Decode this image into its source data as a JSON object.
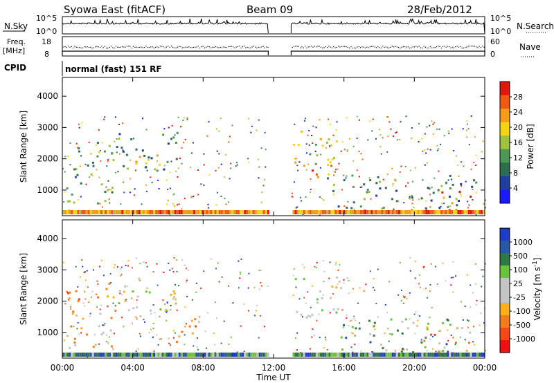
{
  "header": {
    "station": "Syowa East (fitACF)",
    "beam": "Beam 09",
    "date": "28/Feb/2012"
  },
  "top_panels": {
    "nsky_label": "N.Sky",
    "nsearch_label": "N.Search",
    "nsky_ticks": [
      "10^5",
      "10^0"
    ],
    "nsearch_ticks": [
      "10^5",
      "10^0"
    ],
    "freq_label": "Freq.",
    "freq_unit": "[MHz]",
    "freq_ticks": [
      "18",
      "8"
    ],
    "nave_label": "Nave",
    "nave_ticks": [
      "60",
      "0"
    ],
    "cpid_label": "CPID",
    "cpid_text": "normal (fast) 151 RF"
  },
  "colors": {
    "power_scale": [
      "#1a1aff",
      "#1e3fa0",
      "#2e6e50",
      "#4a9a55",
      "#9ec23c",
      "#f5d21a",
      "#f59a1a",
      "#ee5a14",
      "#dd1a0e"
    ],
    "velocity_scale": [
      "#ee1111",
      "#f24a16",
      "#f57c1a",
      "#f8b01e",
      "#c4c4c4",
      "#c4c4c4",
      "#6cc23c",
      "#2e7a46",
      "#2a56a8",
      "#1f3cc8"
    ]
  },
  "chart_data": [
    {
      "type": "heatmap",
      "name": "power",
      "xlabel": "Time UT",
      "ylabel": "Slant Range [km]",
      "x_ticks": [
        "00:00",
        "04:00",
        "08:00",
        "12:00",
        "16:00",
        "20:00",
        "00:00"
      ],
      "xlim_hours": [
        0,
        24
      ],
      "ylim": [
        180,
        4600
      ],
      "y_ticks": [
        1000,
        2000,
        3000,
        4000
      ],
      "colorbar_label": "Power [dB]",
      "colorbar_ticks": [
        4,
        8,
        12,
        16,
        20,
        24,
        28
      ],
      "colorbar_range": [
        0,
        30
      ],
      "data_gap_hours": [
        11.7,
        13.0
      ],
      "echo_regions": [
        {
          "t": [
            0.2,
            3.0
          ],
          "r": [
            600,
            2600
          ],
          "power_db": 12
        },
        {
          "t": [
            3.0,
            6.5
          ],
          "r": [
            1500,
            2900
          ],
          "power_db": 10
        },
        {
          "t": [
            4.0,
            6.0
          ],
          "r": [
            1800,
            2500
          ],
          "power_db": 16
        },
        {
          "t": [
            6.8,
            7.5
          ],
          "r": [
            700,
            1000
          ],
          "power_db": 24
        },
        {
          "t": [
            13.0,
            15.8
          ],
          "r": [
            1500,
            2900
          ],
          "power_db": 16
        },
        {
          "t": [
            14.0,
            15.5
          ],
          "r": [
            1400,
            1900
          ],
          "power_db": 22
        },
        {
          "t": [
            15.0,
            23.5
          ],
          "r": [
            300,
            1500
          ],
          "power_db": 10
        },
        {
          "t": [
            21.5,
            23.2
          ],
          "r": [
            300,
            1000
          ],
          "power_db": 24
        }
      ]
    },
    {
      "type": "heatmap",
      "name": "velocity",
      "xlabel": "Time UT",
      "ylabel": "Slant Range [km]",
      "x_ticks": [
        "00:00",
        "04:00",
        "08:00",
        "12:00",
        "16:00",
        "20:00",
        "00:00"
      ],
      "xlim_hours": [
        0,
        24
      ],
      "ylim": [
        180,
        4600
      ],
      "y_ticks": [
        1000,
        2000,
        3000,
        4000
      ],
      "colorbar_label": "Velocity [m s^-1]",
      "colorbar_ticks": [
        1000,
        500,
        100,
        25,
        -25,
        -100,
        -500,
        -1000
      ],
      "data_gap_hours": [
        11.7,
        13.0
      ],
      "echo_regions": [
        {
          "t": [
            0.2,
            3.0
          ],
          "r": [
            500,
            2600
          ],
          "velocity": -300
        },
        {
          "t": [
            3.0,
            6.5
          ],
          "r": [
            1500,
            2900
          ],
          "velocity": 0
        },
        {
          "t": [
            6.0,
            7.8
          ],
          "r": [
            700,
            1500
          ],
          "velocity": -500
        },
        {
          "t": [
            13.0,
            15.8
          ],
          "r": [
            1500,
            2900
          ],
          "velocity": 0
        },
        {
          "t": [
            15.5,
            22.0
          ],
          "r": [
            300,
            1500
          ],
          "velocity": 400
        },
        {
          "t": [
            20.5,
            23.5
          ],
          "r": [
            300,
            1200
          ],
          "velocity": -300
        }
      ]
    }
  ]
}
